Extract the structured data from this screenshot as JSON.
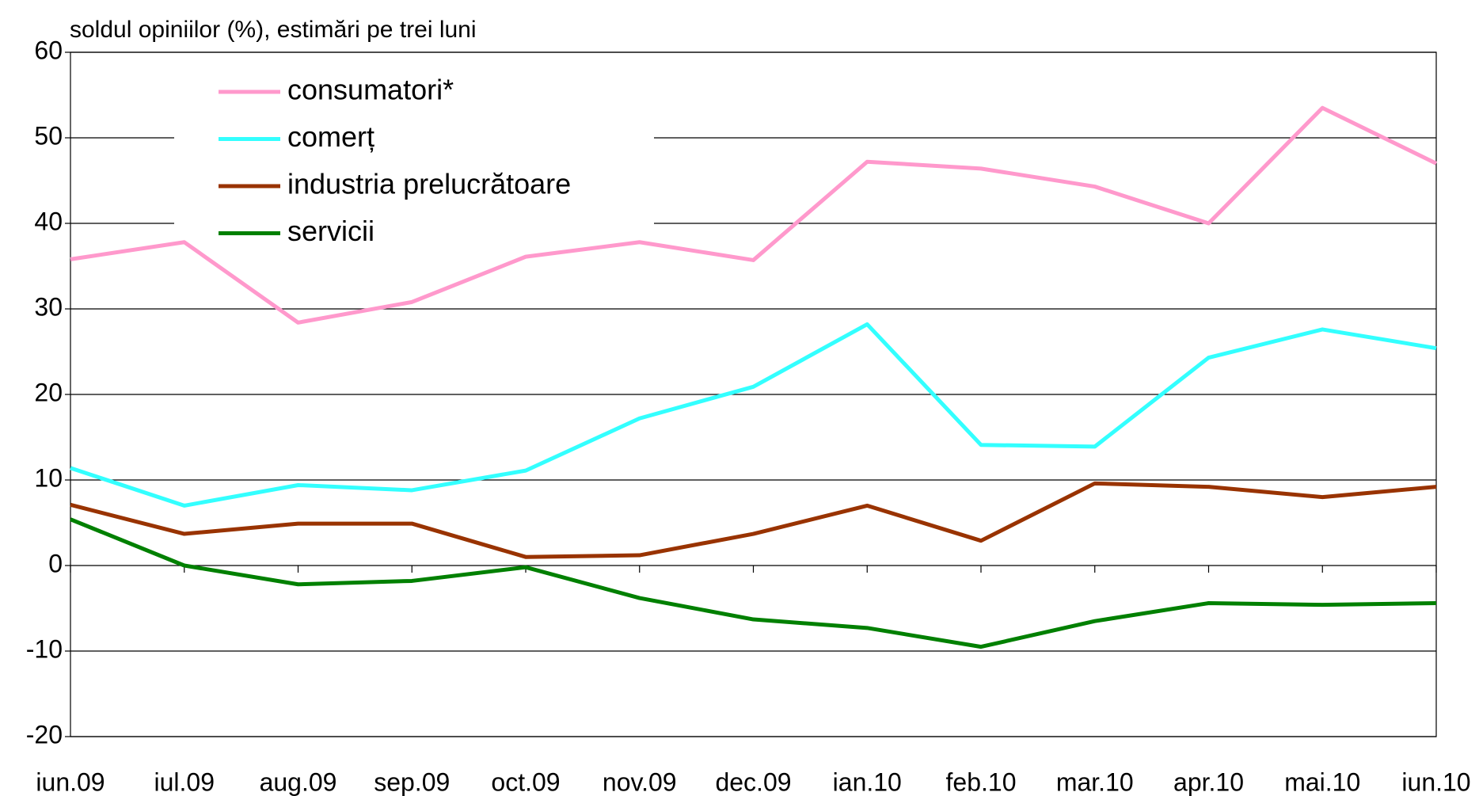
{
  "chart_data": {
    "type": "line",
    "title": "soldul opiniilor (%), estimări pe trei luni",
    "categories": [
      "iun.09",
      "iul.09",
      "aug.09",
      "sep.09",
      "oct.09",
      "nov.09",
      "dec.09",
      "ian.10",
      "feb.10",
      "mar.10",
      "apr.10",
      "mai.10",
      "iun.10"
    ],
    "series": [
      {
        "name": "consumatori*",
        "color": "#ff99cc",
        "values": [
          35.8,
          37.8,
          28.4,
          30.8,
          36.1,
          37.8,
          35.7,
          47.2,
          46.4,
          44.3,
          40.0,
          53.5,
          47.0
        ]
      },
      {
        "name": "comerț",
        "color": "#33ffff",
        "values": [
          11.4,
          7.0,
          9.4,
          8.8,
          11.1,
          17.2,
          20.9,
          28.2,
          14.1,
          13.9,
          24.3,
          27.6,
          25.4
        ]
      },
      {
        "name": "industria prelucrătoare",
        "color": "#993300",
        "values": [
          7.1,
          3.7,
          4.9,
          4.9,
          1.0,
          1.2,
          3.7,
          7.0,
          2.9,
          9.6,
          9.2,
          8.0,
          9.2
        ]
      },
      {
        "name": "servicii",
        "color": "#008000",
        "values": [
          5.4,
          0.0,
          -2.2,
          -1.8,
          -0.2,
          -3.8,
          -6.3,
          -7.3,
          -9.5,
          -6.5,
          -4.4,
          -4.6,
          -4.4
        ]
      }
    ],
    "ylim": [
      -20,
      60
    ],
    "yticks": [
      -20,
      -10,
      0,
      10,
      20,
      30,
      40,
      50,
      60
    ],
    "grid": true
  }
}
